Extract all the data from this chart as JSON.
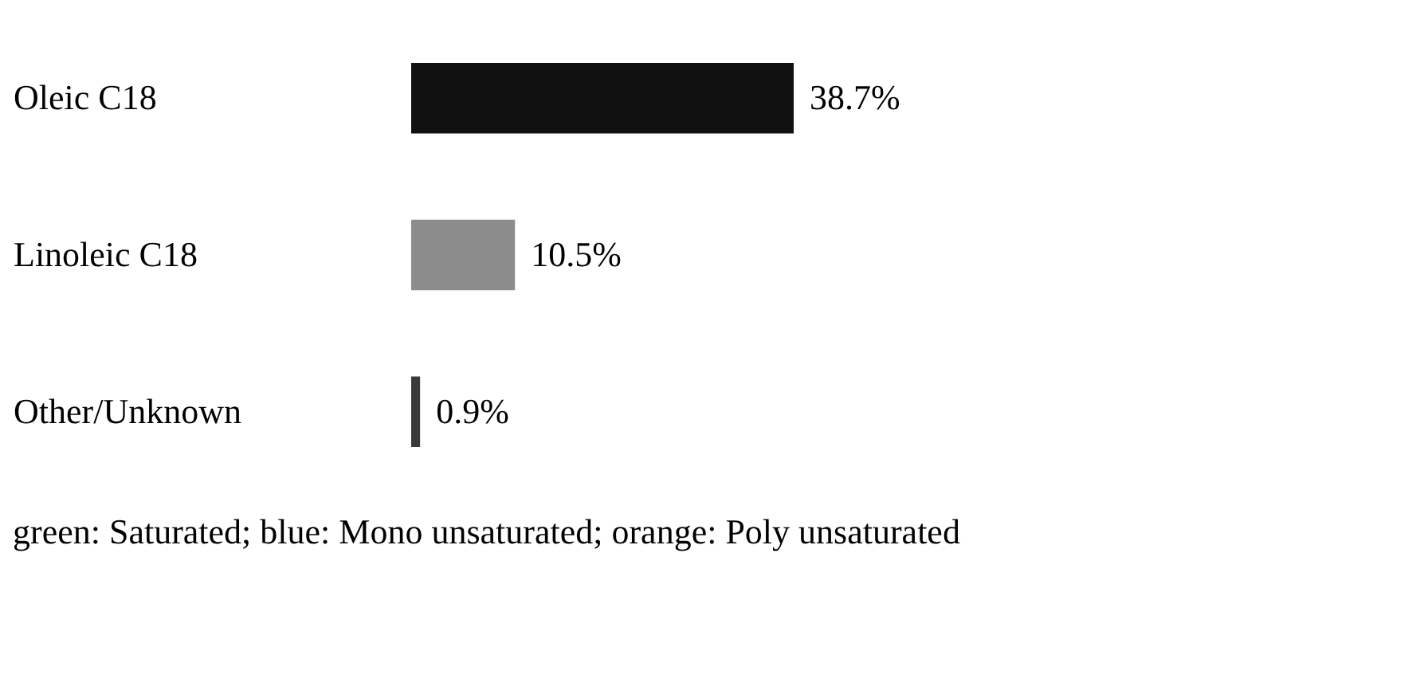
{
  "chart_data": {
    "type": "bar",
    "orientation": "horizontal",
    "categories": [
      "Oleic C18",
      "Linoleic C18",
      "Other/Unknown"
    ],
    "values": [
      38.7,
      10.5,
      0.9
    ],
    "colors": [
      "#111111",
      "#8c8c8c",
      "#3a3a3a"
    ],
    "value_labels": [
      "38.7%",
      "10.5%",
      "0.9%"
    ],
    "annotations": [
      "green: Saturated; blue: Mono unsaturated; orange: Poly unsaturated"
    ]
  }
}
